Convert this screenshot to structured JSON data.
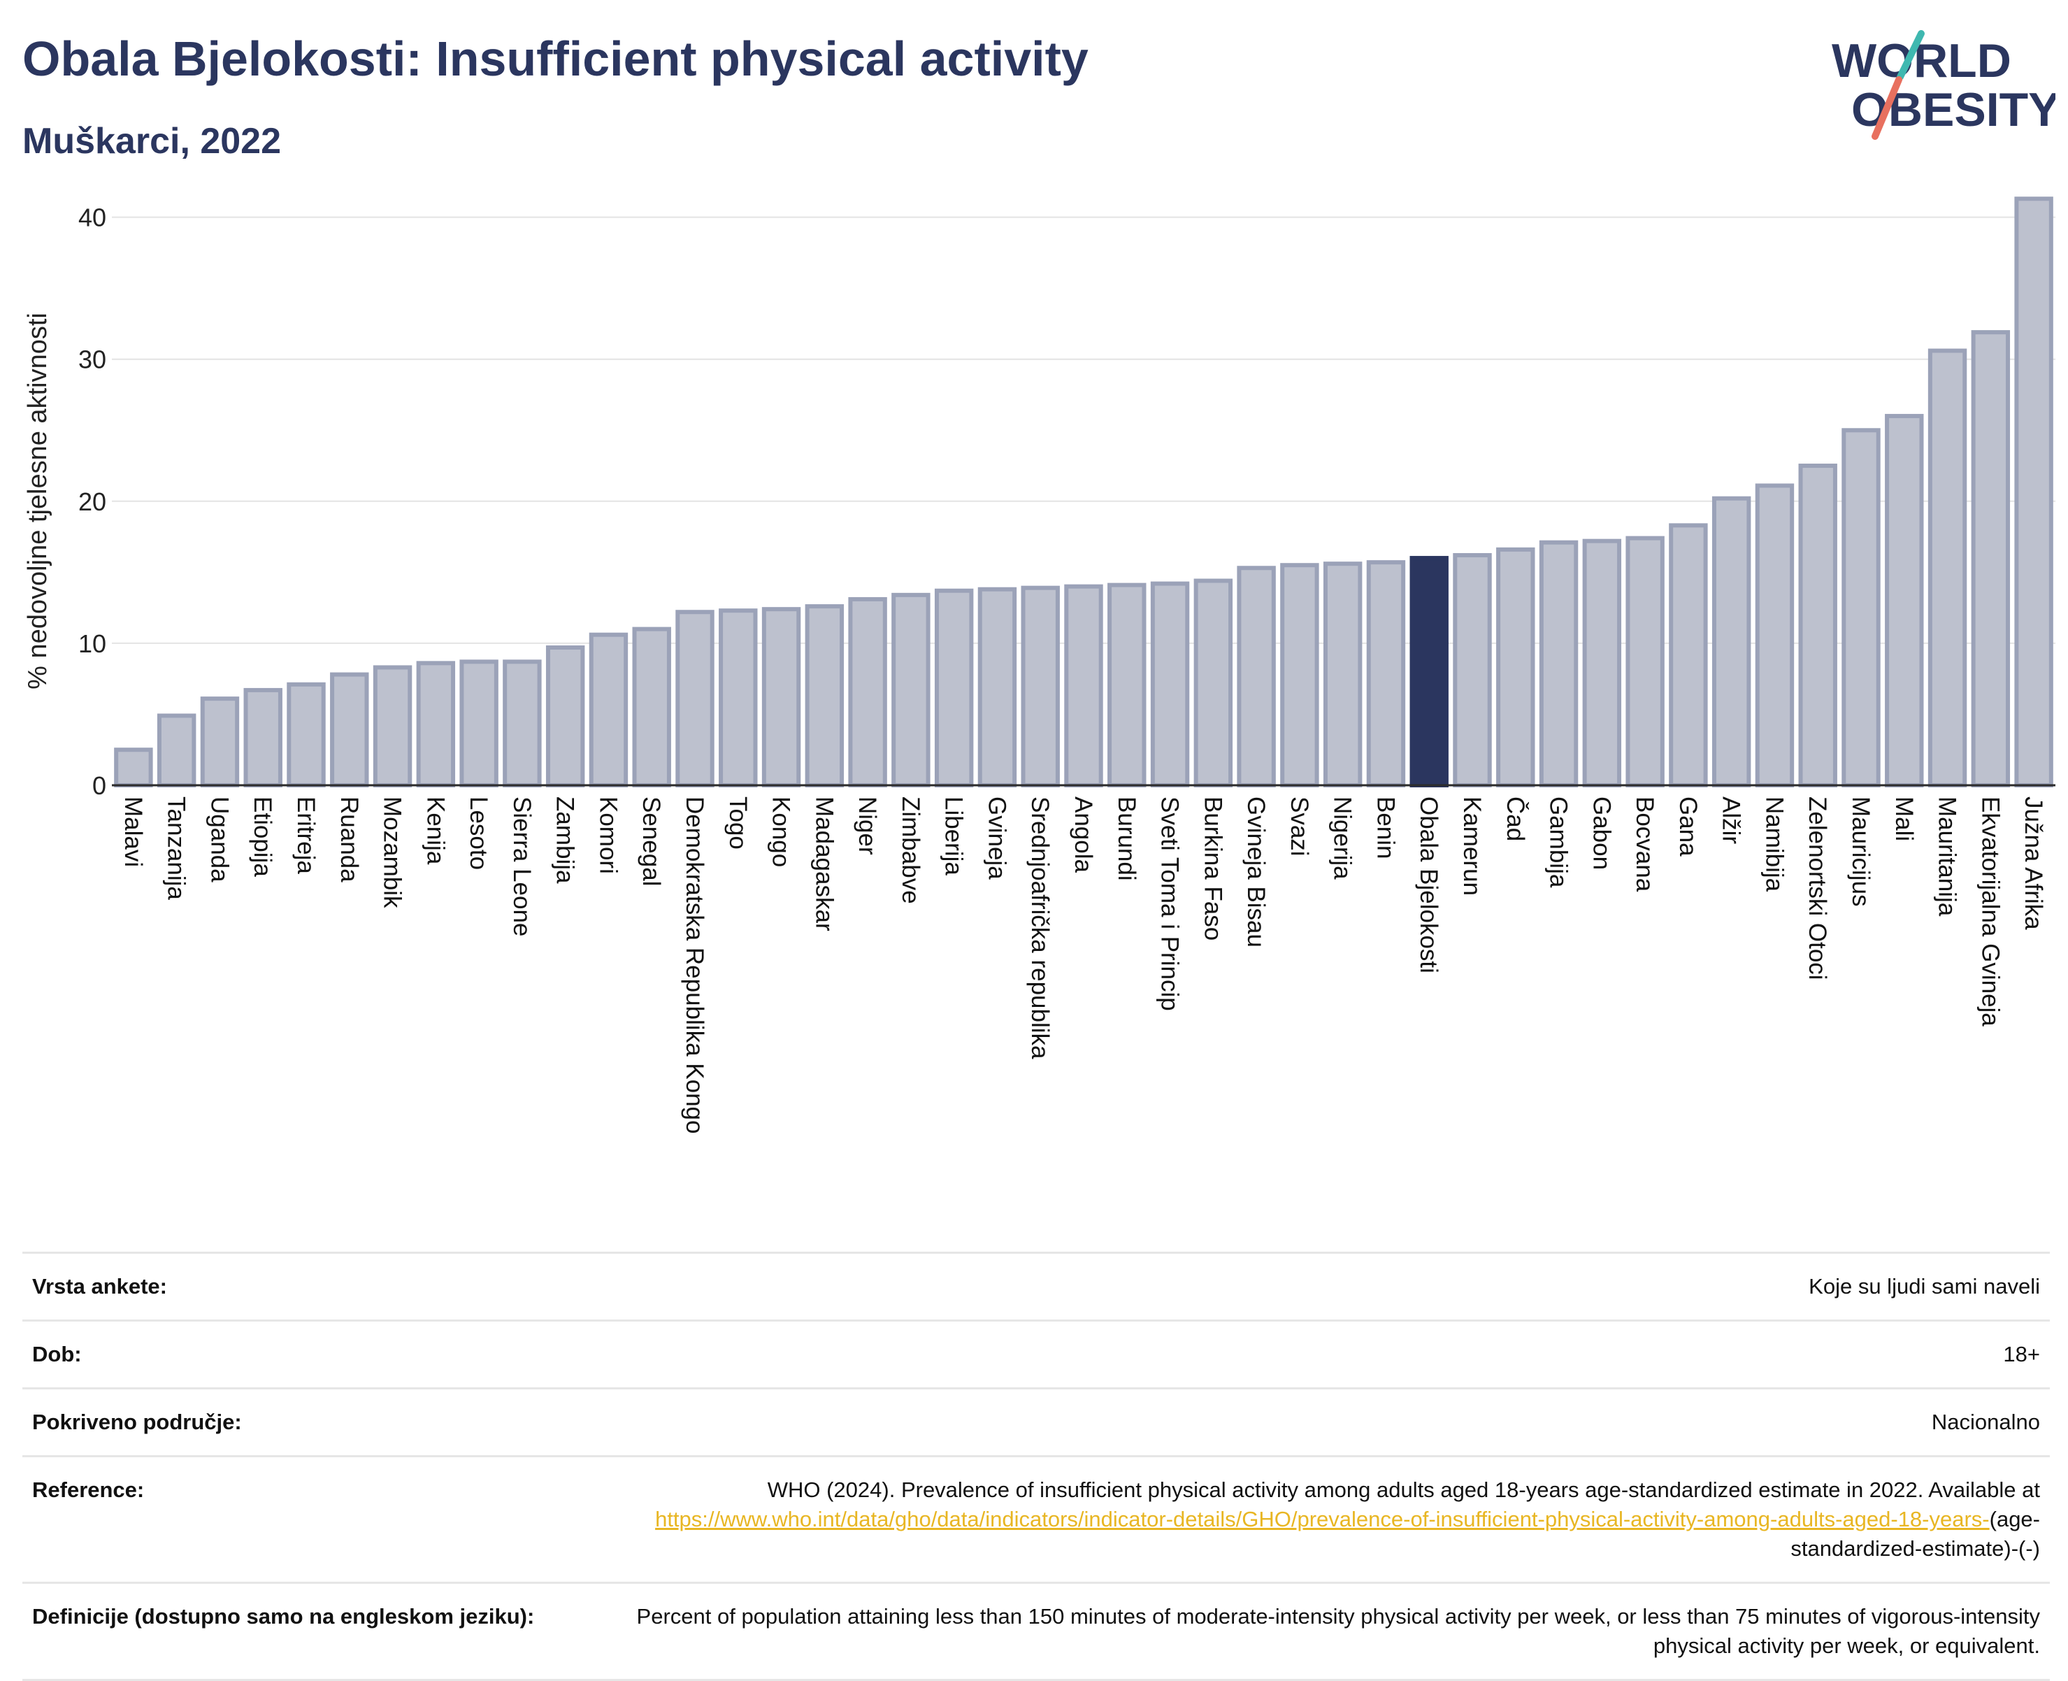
{
  "title": "Obala Bjelokosti: Insufficient physical activity",
  "subtitle": "Muškarci, 2022",
  "logo": {
    "line1": "WORLD",
    "line2": "OBESITY"
  },
  "colors": {
    "highlight": "#2b365f",
    "bar_fill": "#bdc1ce",
    "bar_stroke": "#9ba2b8",
    "title": "#2b365f",
    "link": "#e8b623"
  },
  "chart_data": {
    "type": "bar",
    "ylabel": "% nedovoljne tjelesne aktivnosti",
    "xlabel": "",
    "ylim": [
      0,
      42
    ],
    "yticks": [
      0,
      10,
      20,
      30,
      40
    ],
    "grid": true,
    "highlight": "Obala Bjelokosti",
    "categories": [
      "Malavi",
      "Tanzanija",
      "Uganda",
      "Etiopija",
      "Eritreja",
      "Ruanda",
      "Mozambik",
      "Kenija",
      "Lesoto",
      "Sierra Leone",
      "Zambija",
      "Komori",
      "Senegal",
      "Demokratska Republika Kongo",
      "Togo",
      "Kongo",
      "Madagaskar",
      "Niger",
      "Zimbabve",
      "Liberija",
      "Gvineja",
      "Srednjoafrička republika",
      "Angola",
      "Burundi",
      "Sveti Toma i Princip",
      "Burkina Faso",
      "Gvineja Bisau",
      "Svazi",
      "Nigerija",
      "Benin",
      "Obala Bjelokosti",
      "Kamerun",
      "Čad",
      "Gambija",
      "Gabon",
      "Bocvana",
      "Gana",
      "Alžir",
      "Namibija",
      "Zelenortski Otoci",
      "Mauricijus",
      "Mali",
      "Mauritanija",
      "Ekvatorijalna Gvineja",
      "Južna Afrika"
    ],
    "values": [
      2.5,
      4.9,
      6.1,
      6.7,
      7.1,
      7.8,
      8.3,
      8.6,
      8.7,
      8.7,
      9.7,
      10.6,
      11.0,
      12.2,
      12.3,
      12.4,
      12.6,
      13.1,
      13.4,
      13.7,
      13.8,
      13.9,
      14.0,
      14.1,
      14.2,
      14.4,
      15.3,
      15.5,
      15.6,
      15.7,
      16.0,
      16.2,
      16.6,
      17.1,
      17.2,
      17.4,
      18.3,
      20.2,
      21.1,
      22.5,
      25.0,
      26.0,
      30.6,
      31.9,
      41.3
    ]
  },
  "info": {
    "survey_label": "Vrsta ankete:",
    "survey_value": "Koje su ljudi sami naveli",
    "age_label": "Dob:",
    "age_value": "18+",
    "coverage_label": "Pokriveno područje:",
    "coverage_value": "Nacionalno",
    "reference_label": "Reference:",
    "reference_text": "WHO (2024). Prevalence of insufficient physical activity among adults aged 18-years age-standardized estimate in 2022. Available at",
    "reference_link": "https://www.who.int/data/gho/data/indicators/indicator-details/GHO/prevalence-of-insufficient-physical-activity-among-adults-aged-18-years-",
    "reference_suffix": "(age-standardized-estimate)-(-)",
    "definition_label": "Definicije (dostupno samo na engleskom jeziku):",
    "definition_value": "Percent of population attaining less than 150 minutes of moderate-intensity physical activity per week, or less than 75 minutes of vigorous-intensity physical activity per week, or equivalent."
  }
}
